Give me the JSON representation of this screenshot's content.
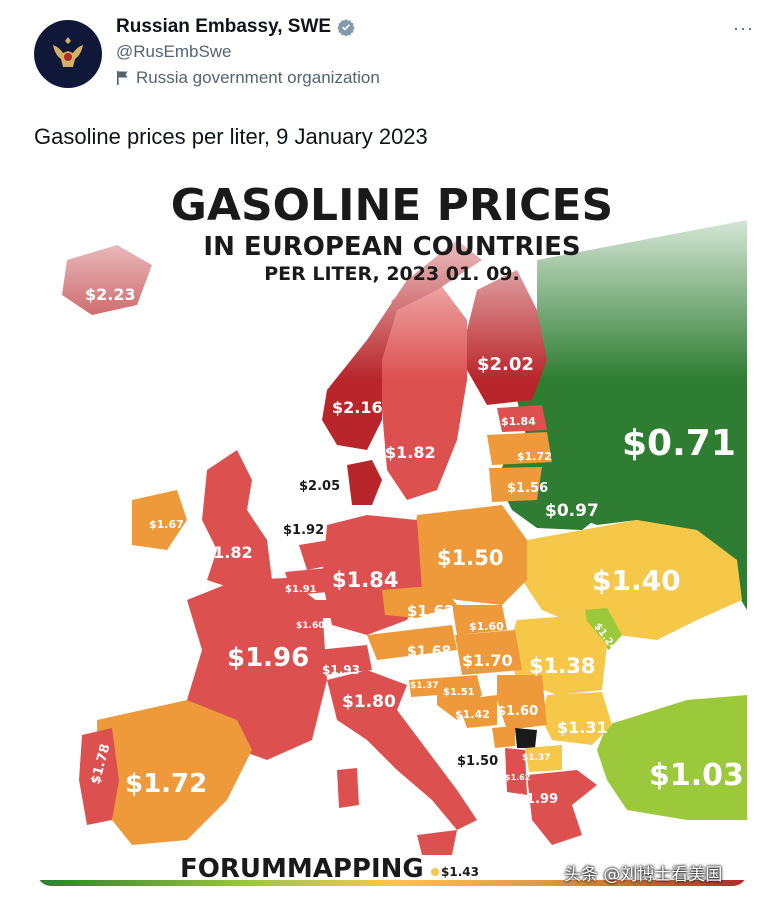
{
  "account": {
    "name": "Russian Embassy, SWE",
    "handle": "@RusEmbSwe",
    "label": "Russia government organization",
    "more": "···"
  },
  "tweet": {
    "text": "Gasoline prices per liter, 9 January 2023"
  },
  "map": {
    "title1": "GASOLINE PRICES",
    "title2": "IN EUROPEAN COUNTRIES",
    "title3": "PER LITER, 2023 01. 09.",
    "brand": "FORUMMAPPING",
    "colors": {
      "high": "#b8262b",
      "red": "#dc5050",
      "orange": "#ee9a3a",
      "yellow": "#f5c84a",
      "lime": "#9cc83c",
      "green": "#2e7d32"
    },
    "prices": {
      "iceland": "$2.23",
      "norway": "$2.16",
      "sweden": "$1.82",
      "finland": "$2.02",
      "estonia": "$1.84",
      "latvia": "$1.72",
      "lithuania": "$1.56",
      "belarus": "$0.97",
      "russia": "$0.71",
      "denmark": "$2.05",
      "netherlands": "$1.92",
      "ireland": "$1.67",
      "uk": "$1.82",
      "germany": "$1.84",
      "belgium": "$1.91",
      "luxembourg": "$1.60",
      "poland": "$1.50",
      "czechia": "$1.62",
      "slovakia": "$1.60",
      "austria": "$1.68",
      "hungary": "$1.70",
      "ukraine": "$1.40",
      "moldova": "$1.24",
      "romania": "$1.38",
      "switzerland": "$1.93",
      "france": "$1.96",
      "italy": "$1.80",
      "slovenia": "$1.37",
      "croatia": "$1.51",
      "bosnia": "$1.42",
      "serbia": "$1.60",
      "bulgaria": "$1.31",
      "montenegro": "$1.50",
      "macedonia": "$1.37",
      "albania": "$1.62",
      "greece": "$1.99",
      "turkey": "$1.03",
      "spain": "$1.72",
      "portugal": "$1.78",
      "malta": "$1.43"
    }
  },
  "watermark": "头条 @刘博士看美国"
}
